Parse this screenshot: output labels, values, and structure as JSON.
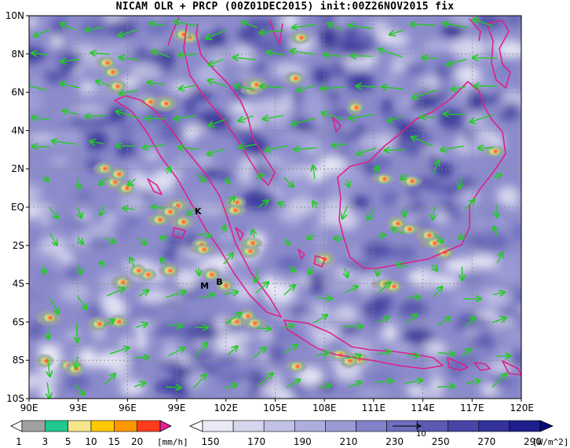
{
  "title": "NICAM OLR + PRCP (00Z01DEC2015) init:00Z26NOV2015 fix",
  "lat_labels": [
    "10N",
    "8N",
    "6N",
    "4N",
    "2N",
    "EQ",
    "2S",
    "4S",
    "6S",
    "8S",
    "10S"
  ],
  "lon_labels": [
    "90E",
    "93E",
    "96E",
    "99E",
    "102E",
    "105E",
    "108E",
    "111E",
    "114E",
    "117E",
    "120E"
  ],
  "cities": [
    {
      "label": "K",
      "lon": 100.3,
      "lat": -0.2
    },
    {
      "label": "M",
      "lon": 100.7,
      "lat": -4.1
    },
    {
      "label": "B",
      "lon": 101.6,
      "lat": -3.9
    }
  ],
  "precip_colorbar": {
    "labels": [
      "1",
      "3",
      "5",
      "10",
      "15",
      "20"
    ],
    "unit": "[mm/h]",
    "colors": [
      "#a0a0a0",
      "#20c890",
      "#f5e68c",
      "#ffc800",
      "#ff9600",
      "#ff3c1e",
      "#e61e96"
    ]
  },
  "olr_colorbar": {
    "labels": [
      "150",
      "170",
      "190",
      "210",
      "230",
      "250",
      "270",
      "290"
    ],
    "unit": "[W/m^2]",
    "colors": [
      "#ffffff",
      "#eaeaf6",
      "#d6d6ee",
      "#c2c2e6",
      "#aeaede",
      "#9a9ad4",
      "#8282c8",
      "#6e6ebe",
      "#5a5ab2",
      "#4646a6",
      "#32329a",
      "#1e1e8c",
      "#0a0a7a"
    ]
  },
  "vector_reference": "10",
  "colors": {
    "wind": "#22cc22",
    "coast": "#dd2288",
    "grid": "#888888"
  }
}
